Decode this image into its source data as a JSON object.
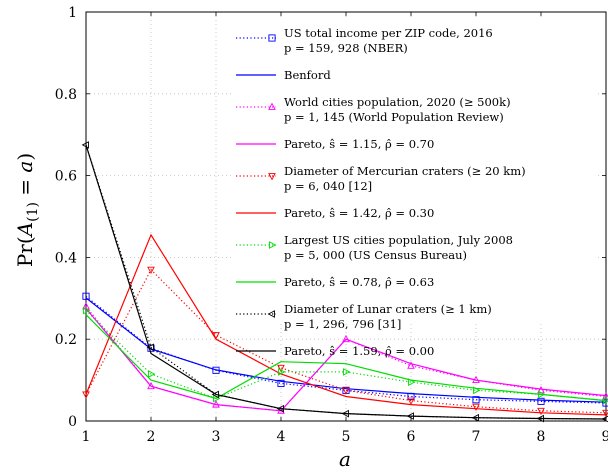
{
  "chart_data": {
    "type": "line",
    "x": [
      1,
      2,
      3,
      4,
      5,
      6,
      7,
      8,
      9
    ],
    "xlim": [
      1,
      9
    ],
    "ylim": [
      0,
      1
    ],
    "x_ticks": [
      "1",
      "2",
      "3",
      "4",
      "5",
      "6",
      "7",
      "8",
      "9"
    ],
    "y_ticks": [
      "0",
      "0.2",
      "0.4",
      "0.6",
      "0.8",
      "1"
    ],
    "xlabel": "a",
    "ylabel": "Pr(A(1) = a)",
    "grid": true,
    "legend_position": "top-right",
    "series": [
      {
        "legend": [
          "US total income per ZIP code, 2016",
          "p = 159, 928 (NBER)"
        ],
        "color": "#0000ff",
        "style": "dotted",
        "marker": "square",
        "values": [
          0.305,
          0.178,
          0.124,
          0.092,
          0.075,
          0.06,
          0.052,
          0.048,
          0.044
        ]
      },
      {
        "legend": [
          "Benford"
        ],
        "color": "#0000ff",
        "style": "solid",
        "marker": "none",
        "values": [
          0.301,
          0.176,
          0.125,
          0.097,
          0.079,
          0.067,
          0.058,
          0.051,
          0.046
        ]
      },
      {
        "legend": [
          "World cities population, 2020 (≥ 500k)",
          "p = 1, 145 (World Population Review)"
        ],
        "color": "#ff00ff",
        "style": "dotted",
        "marker": "triangle-up",
        "values": [
          0.28,
          0.085,
          0.04,
          0.025,
          0.2,
          0.135,
          0.1,
          0.075,
          0.06
        ]
      },
      {
        "legend": [
          "Pareto, ŝ = 1.15, ρ̂ = 0.70"
        ],
        "color": "#ff00ff",
        "style": "solid",
        "marker": "none",
        "values": [
          0.275,
          0.085,
          0.04,
          0.025,
          0.2,
          0.14,
          0.1,
          0.078,
          0.062
        ]
      },
      {
        "legend": [
          "Diameter of Mercurian craters (≥ 20 km)",
          "p = 6, 040 [12]"
        ],
        "color": "#ff0000",
        "style": "dotted",
        "marker": "triangle-down",
        "values": [
          0.065,
          0.37,
          0.21,
          0.13,
          0.075,
          0.05,
          0.035,
          0.025,
          0.02
        ]
      },
      {
        "legend": [
          "Pareto, ŝ = 1.42, ρ̂ = 0.30"
        ],
        "color": "#ff0000",
        "style": "solid",
        "marker": "none",
        "values": [
          0.065,
          0.455,
          0.2,
          0.115,
          0.06,
          0.04,
          0.03,
          0.02,
          0.015
        ]
      },
      {
        "legend": [
          "Largest US cities population, July 2008",
          "p = 5, 000 (US Census Bureau)"
        ],
        "color": "#00dd00",
        "style": "dotted",
        "marker": "triangle-right",
        "values": [
          0.27,
          0.115,
          0.055,
          0.12,
          0.12,
          0.095,
          0.075,
          0.065,
          0.05
        ]
      },
      {
        "legend": [
          "Pareto, ŝ = 0.78, ρ̂ = 0.63"
        ],
        "color": "#00dd00",
        "style": "solid",
        "marker": "none",
        "values": [
          0.26,
          0.1,
          0.055,
          0.145,
          0.14,
          0.1,
          0.08,
          0.065,
          0.05
        ]
      },
      {
        "legend": [
          "Diameter of Lunar craters (≥ 1 km)",
          "p = 1, 296, 796 [31]"
        ],
        "color": "#000000",
        "style": "dotted",
        "marker": "triangle-left",
        "values": [
          0.675,
          0.18,
          0.065,
          0.03,
          0.018,
          0.012,
          0.008,
          0.006,
          0.005
        ]
      },
      {
        "legend": [
          "Pareto, ŝ = 1.59, ρ̂ = 0.00"
        ],
        "color": "#000000",
        "style": "solid",
        "marker": "none",
        "values": [
          0.675,
          0.165,
          0.065,
          0.03,
          0.018,
          0.012,
          0.008,
          0.006,
          0.005
        ]
      }
    ]
  }
}
